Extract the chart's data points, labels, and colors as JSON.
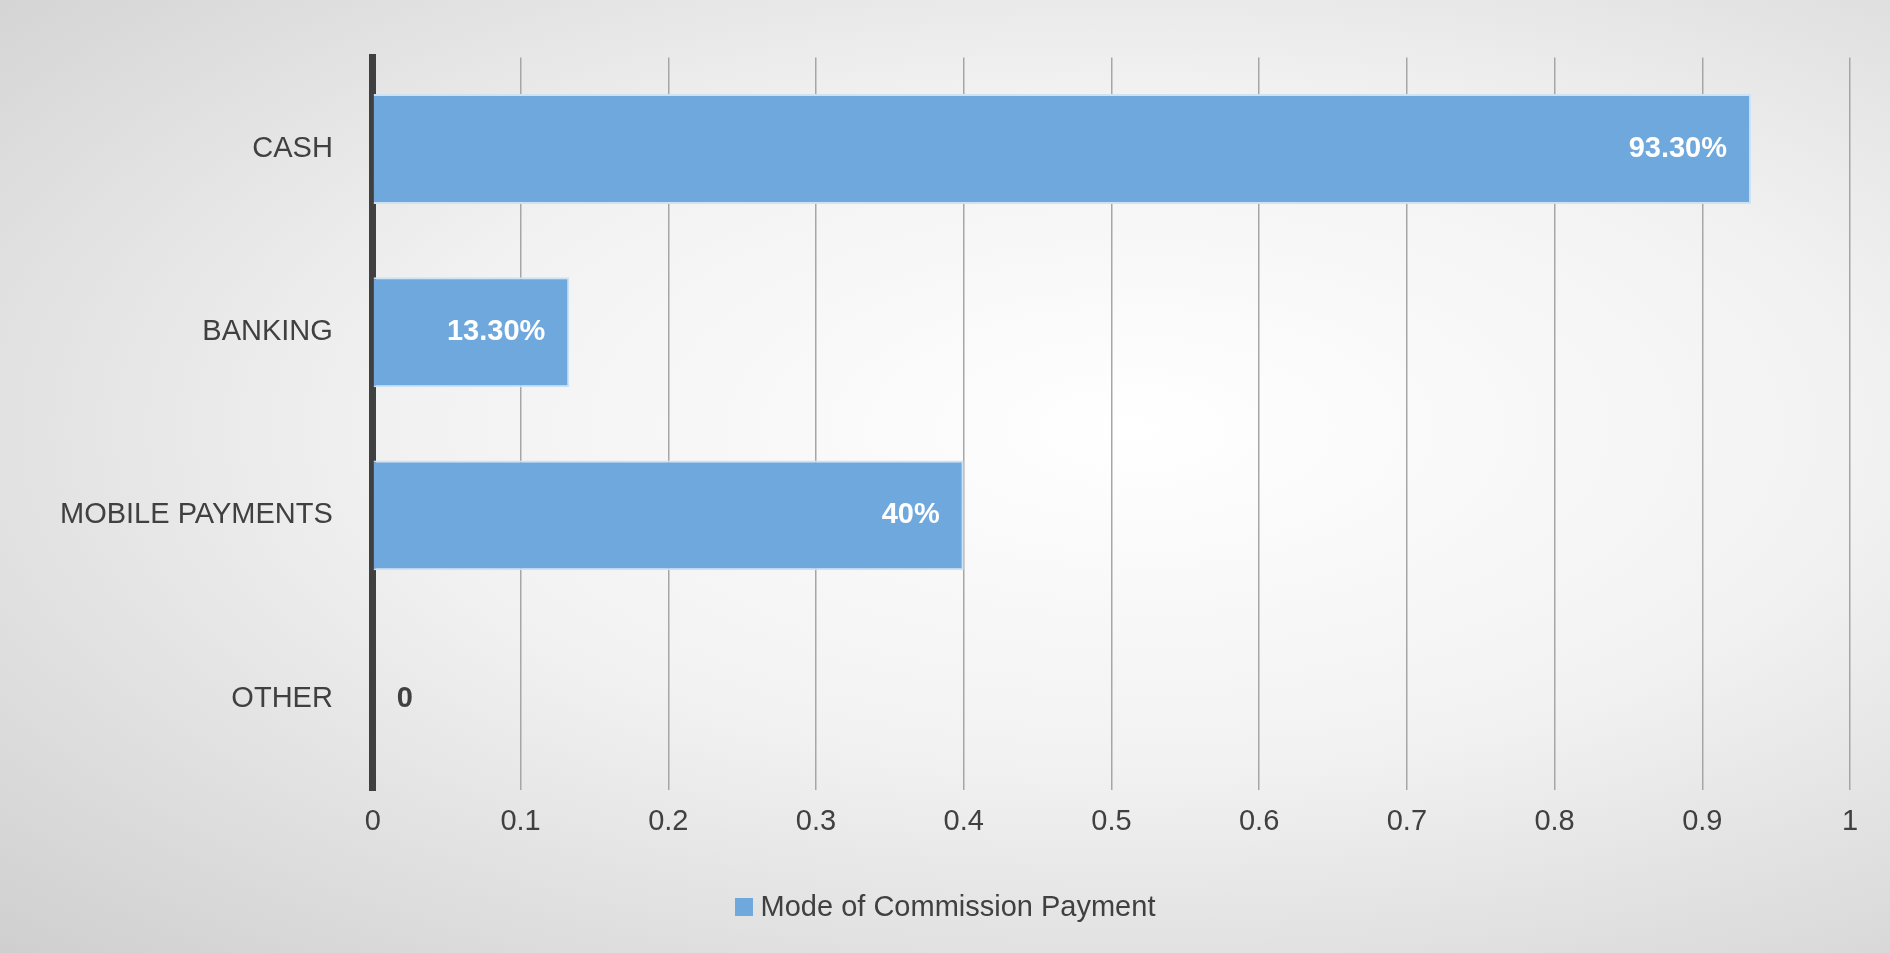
{
  "chart_data": {
    "type": "bar",
    "orientation": "horizontal",
    "categories": [
      "CASH",
      "BANKING",
      "MOBILE PAYMENTS",
      "OTHER"
    ],
    "series": [
      {
        "name": "Mode of Commission Payment",
        "color": "#6fa8dc",
        "values": [
          0.933,
          0.133,
          0.4,
          0
        ],
        "value_labels": [
          "93.30%",
          "13.30%",
          "40%",
          "0"
        ]
      }
    ],
    "xlim": [
      0,
      1
    ],
    "xticks": [
      0,
      0.1,
      0.2,
      0.3,
      0.4,
      0.5,
      0.6,
      0.7,
      0.8,
      0.9,
      1
    ],
    "grid": "x",
    "legend": "bottom"
  }
}
